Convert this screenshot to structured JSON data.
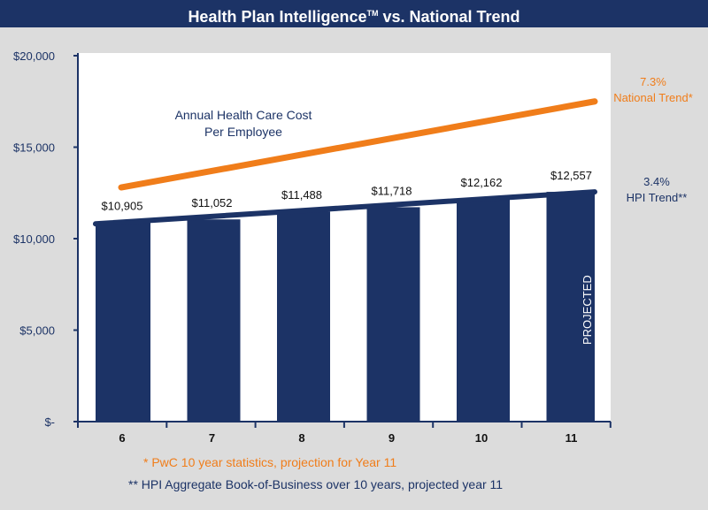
{
  "header": {
    "title": "Health Plan Intelligence",
    "tm": "TM",
    "title_suffix": " vs. National Trend"
  },
  "chart_data": {
    "type": "bar",
    "title": "Health Plan Intelligence™ vs. National Trend",
    "subtitle": "Annual Health Care Cost Per Employee",
    "subtitle_lines": [
      "Annual Health Care Cost",
      "Per Employee"
    ],
    "categories": [
      "6",
      "7",
      "8",
      "9",
      "10",
      "11"
    ],
    "values": [
      10905,
      11052,
      11488,
      11718,
      12162,
      12557
    ],
    "value_labels": [
      "$10,905",
      "$11,052",
      "$11,488",
      "$11,718",
      "$12,162",
      "$12,557"
    ],
    "series": [
      {
        "name": "HPI Trend",
        "values": [
          10905,
          11052,
          11488,
          11718,
          12162,
          12557
        ],
        "color": "#1c3366"
      },
      {
        "name": "National Trend",
        "x": [
          6.3,
          11
        ],
        "values": [
          12800,
          17500
        ],
        "color": "#f07d1a"
      }
    ],
    "ylim": [
      0,
      20000
    ],
    "yticks": [
      0,
      5000,
      10000,
      15000,
      20000
    ],
    "ytick_labels": [
      "$-",
      "$5,000",
      "$10,000",
      "$15,000",
      "$20,000"
    ],
    "annotations": {
      "national_pct": "7.3%",
      "national_label": "National Trend*",
      "hpi_pct": "3.4%",
      "hpi_label": "HPI Trend**",
      "projected": "PROJECTED"
    },
    "footnotes": [
      "*  PwC 10 year statistics, projection for Year 11",
      "** HPI Aggregate Book-of-Business over 10 years, projected year 11"
    ]
  }
}
